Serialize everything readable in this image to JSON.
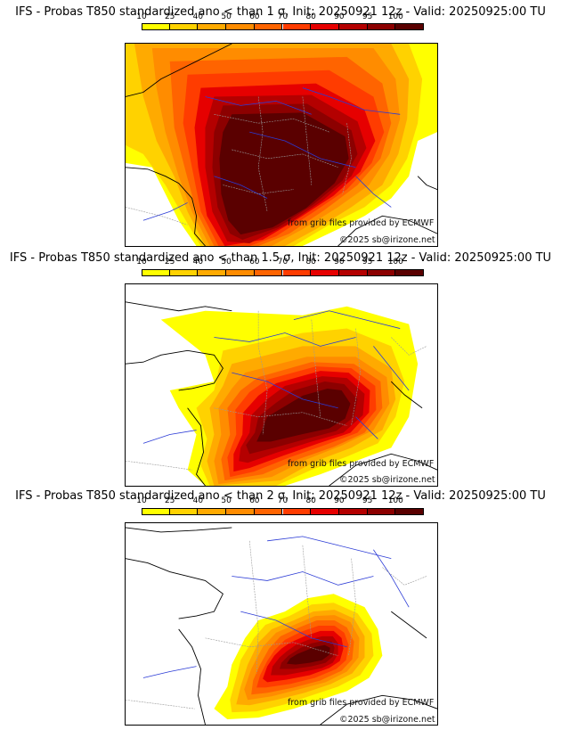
{
  "colorbar": {
    "ticks": [
      "10",
      "25",
      "40",
      "50",
      "60",
      "70",
      "80",
      "90",
      "95",
      "100"
    ],
    "colors": [
      "#ffff00",
      "#ffd200",
      "#ffaa00",
      "#ff8c00",
      "#ff6400",
      "#ff3c00",
      "#e60000",
      "#b40000",
      "#8c0000",
      "#5a0000"
    ]
  },
  "panels": [
    {
      "title": "IFS - Probas T850  standardized ano < than 1 σ, Init: 20250921 12z - Valid: 20250925:00 TU",
      "credit_source": "from grib files provided by ECMWF",
      "credit_copyright": "©2025 sb@irizone.net"
    },
    {
      "title": "IFS - Probas T850  standardized ano < than 1.5 σ, Init: 20250921 12z - Valid: 20250925:00 TU",
      "credit_source": "from grib files provided by ECMWF",
      "credit_copyright": "©2025 sb@irizone.net"
    },
    {
      "title": "IFS - Probas T850  standardized ano < than 2 σ, Init: 20250921 12z - Valid: 20250925:00 TU",
      "credit_source": "from grib files provided by ECMWF",
      "credit_copyright": "©2025 sb@irizone.net"
    }
  ],
  "colors": {
    "coastline": "#000000",
    "rivers": "#2b3bd6",
    "borders": "#9a9a9a"
  }
}
